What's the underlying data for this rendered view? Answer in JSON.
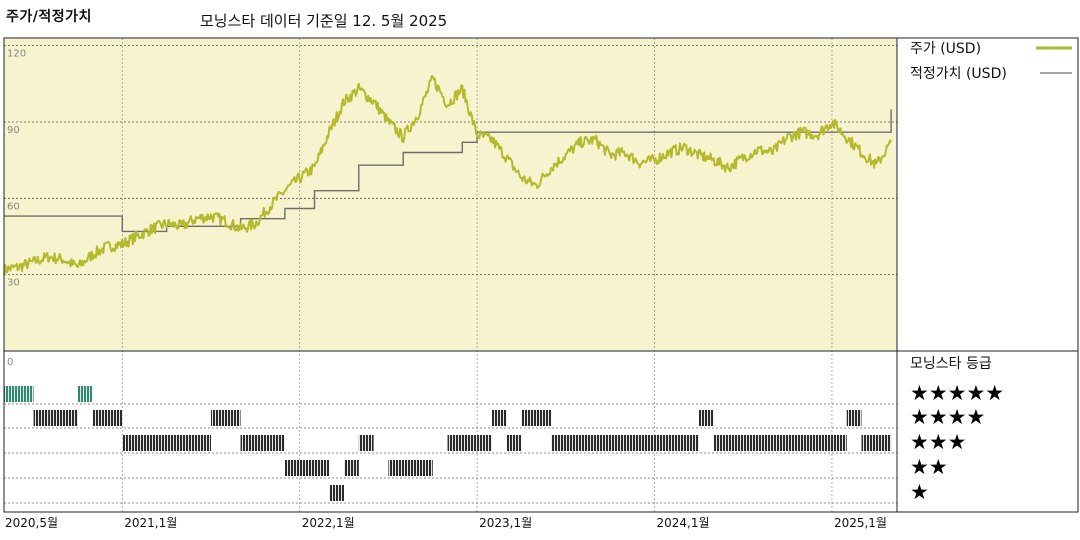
{
  "header": {
    "title": "주가/적정가치",
    "subtitle": "모닝스타 데이터 기준일 12. 5월 2025"
  },
  "legend": {
    "price_label": "주가 (USD)",
    "fair_value_label": "적정가치 (USD)"
  },
  "ratings_title": "모닝스타 등급",
  "star_rows": [
    "★★★★★",
    "★★★★",
    "★★★",
    "★★",
    "★"
  ],
  "colors": {
    "chart_bg": "#f7f3cf",
    "price_line": "#b5b92c",
    "fair_value_line": "#6e6e6e",
    "five_star_bars": "#2e8b72",
    "bars": "#2b2b2b"
  },
  "chart_data": [
    {
      "type": "line",
      "title": "주가/적정가치",
      "x_ticks": [
        "2020,5월",
        "2021,1월",
        "2022,1월",
        "2023,1월",
        "2024,1월",
        "2025,1월"
      ],
      "y_ticks": [
        "120",
        "90",
        "60",
        "30",
        "0"
      ],
      "ylim": [
        0,
        123
      ],
      "grid": true,
      "legend_position": "right",
      "series": [
        {
          "name": "주가 (USD)",
          "points": [
            [
              "2020-05",
              32
            ],
            [
              "2020-06",
              33
            ],
            [
              "2020-07",
              35
            ],
            [
              "2020-08",
              37
            ],
            [
              "2020-09",
              36
            ],
            [
              "2020-10",
              33
            ],
            [
              "2020-11",
              38
            ],
            [
              "2020-12",
              41
            ],
            [
              "2021-01",
              42
            ],
            [
              "2021-02",
              45
            ],
            [
              "2021-03",
              48
            ],
            [
              "2021-04",
              50
            ],
            [
              "2021-05",
              49
            ],
            [
              "2021-06",
              52
            ],
            [
              "2021-07",
              53
            ],
            [
              "2021-08",
              51
            ],
            [
              "2021-09",
              48
            ],
            [
              "2021-10",
              50
            ],
            [
              "2021-11",
              57
            ],
            [
              "2021-12",
              63
            ],
            [
              "2022-01",
              68
            ],
            [
              "2022-02",
              72
            ],
            [
              "2022-03",
              86
            ],
            [
              "2022-04",
              98
            ],
            [
              "2022-05",
              103
            ],
            [
              "2022-06",
              98
            ],
            [
              "2022-07",
              90
            ],
            [
              "2022-08",
              84
            ],
            [
              "2022-09",
              93
            ],
            [
              "2022-10",
              107
            ],
            [
              "2022-11",
              97
            ],
            [
              "2022-12",
              103
            ],
            [
              "2023-01",
              85
            ],
            [
              "2023-02",
              83
            ],
            [
              "2023-03",
              76
            ],
            [
              "2023-04",
              68
            ],
            [
              "2023-05",
              65
            ],
            [
              "2023-06",
              72
            ],
            [
              "2023-07",
              77
            ],
            [
              "2023-08",
              82
            ],
            [
              "2023-09",
              83
            ],
            [
              "2023-10",
              77
            ],
            [
              "2023-11",
              78
            ],
            [
              "2023-12",
              74
            ],
            [
              "2024-01",
              75
            ],
            [
              "2024-02",
              78
            ],
            [
              "2024-03",
              80
            ],
            [
              "2024-04",
              77
            ],
            [
              "2024-05",
              75
            ],
            [
              "2024-06",
              72
            ],
            [
              "2024-07",
              76
            ],
            [
              "2024-08",
              79
            ],
            [
              "2024-09",
              78
            ],
            [
              "2024-10",
              84
            ],
            [
              "2024-11",
              86
            ],
            [
              "2024-12",
              85
            ],
            [
              "2025-01",
              90
            ],
            [
              "2025-02",
              84
            ],
            [
              "2025-03",
              78
            ],
            [
              "2025-04",
              73
            ],
            [
              "2025-05",
              82
            ]
          ]
        },
        {
          "name": "적정가치 (USD)",
          "step": true,
          "points": [
            [
              "2020-05",
              53
            ],
            [
              "2021-01",
              47
            ],
            [
              "2021-04",
              49
            ],
            [
              "2021-09",
              52
            ],
            [
              "2021-12",
              56
            ],
            [
              "2022-02",
              63
            ],
            [
              "2022-05",
              73
            ],
            [
              "2022-08",
              78
            ],
            [
              "2022-12",
              82
            ],
            [
              "2023-01",
              86
            ],
            [
              "2025-05",
              86
            ],
            [
              "2025-05",
              95
            ]
          ]
        }
      ]
    },
    {
      "type": "bar",
      "title": "모닝스타 등급",
      "x_ticks": [
        "2020,5월",
        "2021,1월",
        "2022,1월",
        "2023,1월",
        "2024,1월",
        "2025,1월"
      ],
      "rating_periods": [
        {
          "from": "2020-05",
          "to": "2020-07",
          "stars": 5
        },
        {
          "from": "2020-07",
          "to": "2020-08",
          "stars": 4
        },
        {
          "from": "2020-08",
          "to": "2020-10",
          "stars": 4
        },
        {
          "from": "2020-10",
          "to": "2020-11",
          "stars": 5
        },
        {
          "from": "2020-11",
          "to": "2021-01",
          "stars": 4
        },
        {
          "from": "2021-01",
          "to": "2021-07",
          "stars": 3
        },
        {
          "from": "2021-07",
          "to": "2021-09",
          "stars": 4
        },
        {
          "from": "2021-09",
          "to": "2021-11",
          "stars": 3
        },
        {
          "from": "2021-11",
          "to": "2021-12",
          "stars": 3
        },
        {
          "from": "2021-12",
          "to": "2022-01",
          "stars": 2
        },
        {
          "from": "2022-01",
          "to": "2022-03",
          "stars": 2
        },
        {
          "from": "2022-03",
          "to": "2022-04",
          "stars": 1
        },
        {
          "from": "2022-04",
          "to": "2022-05",
          "stars": 2
        },
        {
          "from": "2022-05",
          "to": "2022-06",
          "stars": 3
        },
        {
          "from": "2022-07",
          "to": "2022-10",
          "stars": 2
        },
        {
          "from": "2022-11",
          "to": "2023-01",
          "stars": 3
        },
        {
          "from": "2023-01",
          "to": "2023-02",
          "stars": 3
        },
        {
          "from": "2023-02",
          "to": "2023-03",
          "stars": 4
        },
        {
          "from": "2023-03",
          "to": "2023-04",
          "stars": 3
        },
        {
          "from": "2023-04",
          "to": "2023-06",
          "stars": 4
        },
        {
          "from": "2023-06",
          "to": "2024-04",
          "stars": 3
        },
        {
          "from": "2024-04",
          "to": "2024-05",
          "stars": 4
        },
        {
          "from": "2024-05",
          "to": "2025-02",
          "stars": 3
        },
        {
          "from": "2025-02",
          "to": "2025-03",
          "stars": 4
        },
        {
          "from": "2025-03",
          "to": "2025-05",
          "stars": 3
        }
      ]
    }
  ]
}
